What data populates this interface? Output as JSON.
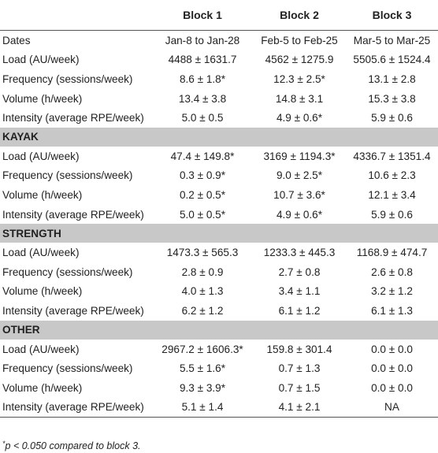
{
  "headers": [
    "",
    "Block 1",
    "Block 2",
    "Block 3"
  ],
  "groups": [
    {
      "title": "",
      "rows": [
        [
          "Dates",
          "Jan-8 to Jan-28",
          "Feb-5 to Feb-25",
          "Mar-5 to Mar-25"
        ],
        [
          "Load (AU/week)",
          "4488 ± 1631.7",
          "4562 ± 1275.9",
          "5505.6 ± 1524.4"
        ],
        [
          "Frequency (sessions/week)",
          "8.6 ± 1.8*",
          "12.3 ± 2.5*",
          "13.1 ± 2.8"
        ],
        [
          "Volume (h/week)",
          "13.4 ± 3.8",
          "14.8 ± 3.1",
          "15.3 ± 3.8"
        ],
        [
          "Intensity (average RPE/week)",
          "5.0 ± 0.5",
          "4.9 ± 0.6*",
          "5.9 ± 0.6"
        ]
      ]
    },
    {
      "title": "KAYAK",
      "rows": [
        [
          "Load (AU/week)",
          "47.4 ± 149.8*",
          "3169 ± 1194.3*",
          "4336.7 ± 1351.4"
        ],
        [
          "Frequency (sessions/week)",
          "0.3 ± 0.9*",
          "9.0 ± 2.5*",
          "10.6 ± 2.3"
        ],
        [
          "Volume (h/week)",
          "0.2 ± 0.5*",
          "10.7 ± 3.6*",
          "12.1 ± 3.4"
        ],
        [
          "Intensity (average RPE/week)",
          "5.0 ± 0.5*",
          "4.9 ± 0.6*",
          "5.9 ± 0.6"
        ]
      ]
    },
    {
      "title": "STRENGTH",
      "rows": [
        [
          "Load (AU/week)",
          "1473.3 ± 565.3",
          "1233.3 ± 445.3",
          "1168.9 ± 474.7"
        ],
        [
          "Frequency (sessions/week)",
          "2.8 ± 0.9",
          "2.7 ± 0.8",
          "2.6 ± 0.8"
        ],
        [
          "Volume (h/week)",
          "4.0 ± 1.3",
          "3.4 ± 1.1",
          "3.2 ± 1.2"
        ],
        [
          "Intensity (average RPE/week)",
          "6.2 ± 1.2",
          "6.1 ± 1.2",
          "6.1 ± 1.3"
        ]
      ]
    },
    {
      "title": "OTHER",
      "rows": [
        [
          "Load (AU/week)",
          "2967.2 ± 1606.3*",
          "159.8 ± 301.4",
          "0.0 ± 0.0"
        ],
        [
          "Frequency (sessions/week)",
          "5.5 ± 1.6*",
          "0.7 ± 1.3",
          "0.0 ± 0.0"
        ],
        [
          "Volume (h/week)",
          "9.3 ± 3.9*",
          "0.7 ± 1.5",
          "0.0 ± 0.0"
        ],
        [
          "Intensity (average RPE/week)",
          "5.1 ± 1.4",
          "4.1 ± 2.1",
          "NA"
        ]
      ]
    }
  ],
  "footnote": {
    "mark": "*",
    "text": "p < 0.050 compared to block 3."
  }
}
